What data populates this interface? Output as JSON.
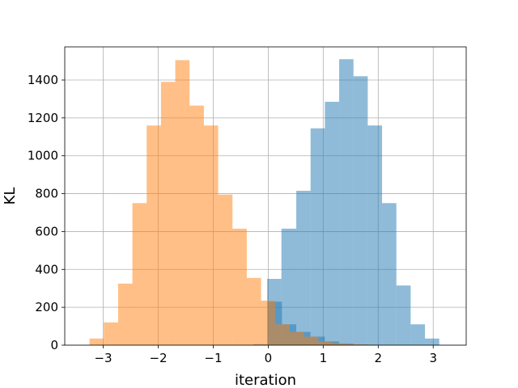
{
  "chart_data": {
    "type": "bar",
    "title": "",
    "xlabel": "iteration",
    "ylabel": "KL",
    "xlim": [
      -3.7,
      3.6
    ],
    "ylim": [
      0,
      1575
    ],
    "xticks": [
      -3,
      -2,
      -1,
      0,
      1,
      2,
      3
    ],
    "xtick_labels": [
      "−3",
      "−2",
      "−1",
      "0",
      "1",
      "2",
      "3"
    ],
    "yticks": [
      0,
      200,
      400,
      600,
      800,
      1000,
      1200,
      1400
    ],
    "grid": true,
    "legend": "none",
    "series": [
      {
        "color": "#1f77b4",
        "opacity": 0.5,
        "bin_edges": [
          -0.27,
          -0.01,
          0.25,
          0.51,
          0.77,
          1.03,
          1.29,
          1.55,
          1.81,
          2.07,
          2.33,
          2.59,
          2.85,
          3.11,
          3.37
        ],
        "values": [
          5,
          230,
          110,
          70,
          45,
          20,
          8,
          3,
          2,
          1,
          0,
          0,
          0,
          0
        ]
      },
      {
        "color": "#1f77b4",
        "opacity": 0.5,
        "bin_edges": [
          -0.02,
          0.24,
          0.51,
          0.77,
          1.03,
          1.29,
          1.55,
          1.81,
          2.07,
          2.33,
          2.59,
          2.85,
          3.11,
          3.37
        ],
        "values": [
          350,
          615,
          815,
          1145,
          1285,
          1510,
          1420,
          1160,
          750,
          315,
          110,
          35,
          0
        ]
      },
      {
        "color": "#ff7f0e",
        "opacity": 0.5,
        "bin_edges": [
          -3.25,
          -2.99,
          -2.73,
          -2.47,
          -2.21,
          -1.95,
          -1.69,
          -1.43,
          -1.17,
          -0.91,
          -0.65,
          -0.39,
          -0.13,
          0.13,
          0.39,
          0.65,
          0.91,
          1.17,
          1.43,
          1.69,
          1.95,
          2.21,
          2.47,
          2.73
        ],
        "values": [
          35,
          120,
          325,
          750,
          1160,
          1390,
          1505,
          1265,
          1160,
          795,
          615,
          355,
          235,
          110,
          70,
          45,
          20,
          10,
          5,
          3,
          2,
          1,
          1
        ]
      }
    ]
  }
}
